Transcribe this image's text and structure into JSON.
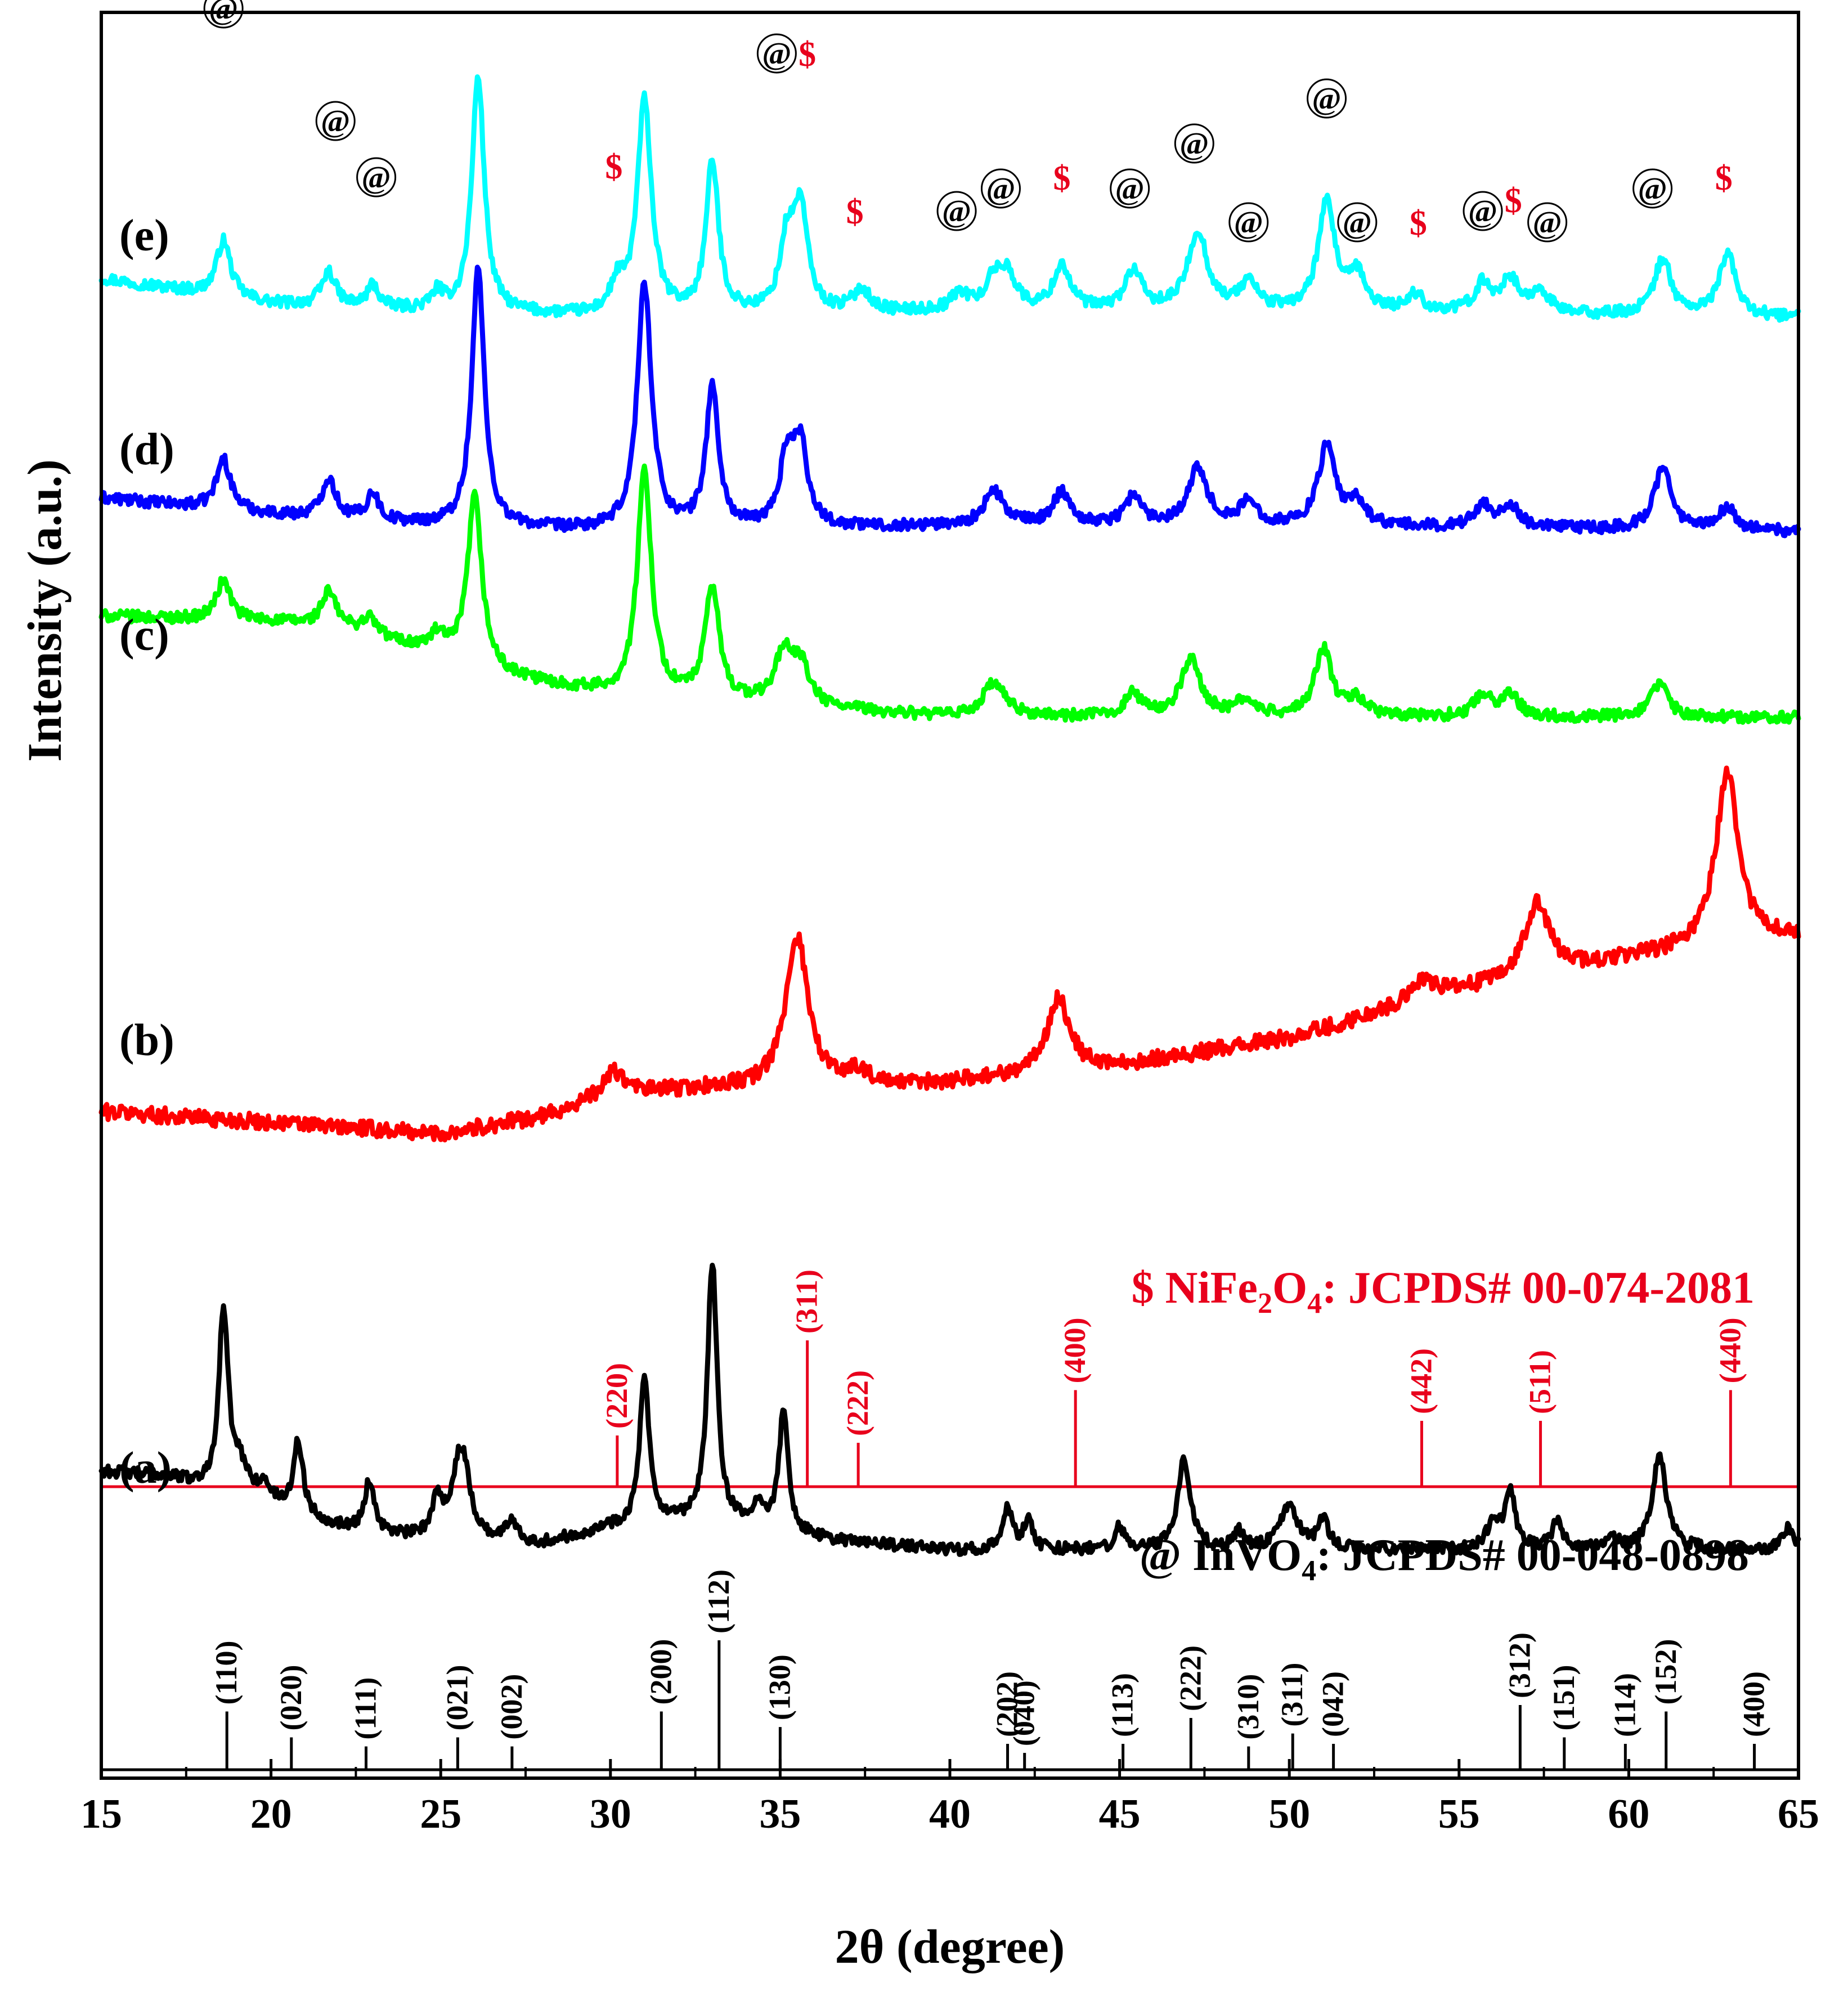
{
  "chart_data": {
    "type": "line",
    "title": "",
    "xlabel": "2θ (degree)",
    "ylabel": "Intensity (a.u.)",
    "xlim": [
      15,
      65
    ],
    "x_ticks": [
      15,
      20,
      25,
      30,
      35,
      40,
      45,
      50,
      55,
      60,
      65
    ],
    "series": [
      {
        "name": "(e)",
        "color": "#00ffff",
        "baseline": 8.35,
        "bg": [
          [
            15,
            0.35
          ],
          [
            20,
            0.12
          ],
          [
            25,
            0.05
          ],
          [
            30,
            0.0
          ],
          [
            40,
            0.05
          ],
          [
            50,
            0.05
          ],
          [
            65,
            0.0
          ]
        ],
        "noise": 0.05,
        "peaks": [
          [
            18.6,
            0.5,
            0.25
          ],
          [
            21.7,
            0.3,
            0.25
          ],
          [
            23.0,
            0.2,
            0.2
          ],
          [
            24.9,
            0.15,
            0.2
          ],
          [
            26.1,
            2.1,
            0.22
          ],
          [
            30.2,
            0.25,
            0.25
          ],
          [
            31.0,
            1.9,
            0.25
          ],
          [
            33.0,
            1.35,
            0.22
          ],
          [
            35.2,
            0.6,
            0.25
          ],
          [
            35.6,
            0.9,
            0.25
          ],
          [
            37.4,
            0.2,
            0.3
          ],
          [
            40.3,
            0.15,
            0.3
          ],
          [
            41.3,
            0.25,
            0.3
          ],
          [
            41.7,
            0.3,
            0.3
          ],
          [
            43.3,
            0.4,
            0.3
          ],
          [
            45.4,
            0.35,
            0.3
          ],
          [
            47.3,
            0.7,
            0.35
          ],
          [
            48.8,
            0.25,
            0.3
          ],
          [
            51.1,
            0.95,
            0.3
          ],
          [
            52.0,
            0.3,
            0.3
          ],
          [
            53.7,
            0.15,
            0.3
          ],
          [
            55.7,
            0.25,
            0.3
          ],
          [
            56.5,
            0.3,
            0.3
          ],
          [
            57.4,
            0.2,
            0.3
          ],
          [
            61.0,
            0.5,
            0.3
          ],
          [
            62.9,
            0.55,
            0.3
          ]
        ],
        "markers": [
          {
            "sym": "@",
            "x": 18.6,
            "y": 11.1
          },
          {
            "sym": "@",
            "x": 21.9,
            "y": 10.1
          },
          {
            "sym": "@",
            "x": 23.1,
            "y": 9.6
          },
          {
            "sym": "@",
            "x": 26.1,
            "y": 12.5
          },
          {
            "sym": "$",
            "x": 30.1,
            "y": 9.7
          },
          {
            "sym": "@",
            "x": 31.0,
            "y": 12.5
          },
          {
            "sym": "@",
            "x": 33.0,
            "y": 11.7
          },
          {
            "sym": "@",
            "x": 34.9,
            "y": 10.7
          },
          {
            "sym": "$",
            "x": 35.8,
            "y": 10.7
          },
          {
            "sym": "$",
            "x": 37.2,
            "y": 9.3
          },
          {
            "sym": "@",
            "x": 40.2,
            "y": 9.3
          },
          {
            "sym": "@",
            "x": 41.5,
            "y": 9.5
          },
          {
            "sym": "$",
            "x": 43.3,
            "y": 9.6
          },
          {
            "sym": "@",
            "x": 45.3,
            "y": 9.5
          },
          {
            "sym": "@",
            "x": 47.2,
            "y": 9.9
          },
          {
            "sym": "@",
            "x": 48.8,
            "y": 9.2
          },
          {
            "sym": "@",
            "x": 51.1,
            "y": 10.3
          },
          {
            "sym": "@",
            "x": 52.0,
            "y": 9.2
          },
          {
            "sym": "$",
            "x": 53.8,
            "y": 9.2
          },
          {
            "sym": "@",
            "x": 55.7,
            "y": 9.3
          },
          {
            "sym": "$",
            "x": 56.6,
            "y": 9.4
          },
          {
            "sym": "@",
            "x": 57.6,
            "y": 9.2
          },
          {
            "sym": "@",
            "x": 60.7,
            "y": 9.5
          },
          {
            "sym": "$",
            "x": 62.8,
            "y": 9.6
          }
        ]
      },
      {
        "name": "(d)",
        "color": "#0000ff",
        "baseline": 6.45,
        "bg": [
          [
            15,
            0.3
          ],
          [
            20,
            0.15
          ],
          [
            25,
            0.05
          ],
          [
            30,
            0.0
          ],
          [
            40,
            0.05
          ],
          [
            50,
            0.05
          ],
          [
            65,
            0.0
          ]
        ],
        "noise": 0.05,
        "peaks": [
          [
            18.6,
            0.45,
            0.25
          ],
          [
            21.7,
            0.35,
            0.25
          ],
          [
            23.0,
            0.25,
            0.2
          ],
          [
            26.1,
            2.3,
            0.22
          ],
          [
            31.0,
            2.2,
            0.25
          ],
          [
            33.0,
            1.25,
            0.22
          ],
          [
            35.2,
            0.6,
            0.25
          ],
          [
            35.6,
            0.7,
            0.25
          ],
          [
            41.3,
            0.3,
            0.35
          ],
          [
            43.3,
            0.3,
            0.3
          ],
          [
            45.4,
            0.25,
            0.3
          ],
          [
            47.3,
            0.5,
            0.35
          ],
          [
            48.8,
            0.2,
            0.3
          ],
          [
            51.1,
            0.7,
            0.3
          ],
          [
            52.0,
            0.2,
            0.3
          ],
          [
            55.7,
            0.2,
            0.3
          ],
          [
            56.5,
            0.2,
            0.3
          ],
          [
            61.0,
            0.55,
            0.3
          ],
          [
            62.9,
            0.2,
            0.3
          ]
        ],
        "markers": []
      },
      {
        "name": "(c)",
        "color": "#00ff00",
        "baseline": 4.8,
        "bg": [
          [
            15,
            0.9
          ],
          [
            20,
            0.85
          ],
          [
            22,
            0.8
          ],
          [
            25,
            0.55
          ],
          [
            27,
            0.35
          ],
          [
            30,
            0.2
          ],
          [
            35,
            0.1
          ],
          [
            40,
            0.0
          ],
          [
            50,
            0.0
          ],
          [
            65,
            0.0
          ]
        ],
        "noise": 0.05,
        "peaks": [
          [
            18.6,
            0.35,
            0.25
          ],
          [
            21.7,
            0.3,
            0.25
          ],
          [
            22.9,
            0.15,
            0.25
          ],
          [
            24.9,
            0.15,
            0.25
          ],
          [
            26.0,
            1.5,
            0.25
          ],
          [
            31.0,
            2.0,
            0.25
          ],
          [
            33.0,
            1.0,
            0.25
          ],
          [
            35.1,
            0.45,
            0.3
          ],
          [
            35.6,
            0.35,
            0.3
          ],
          [
            41.3,
            0.3,
            0.4
          ],
          [
            45.4,
            0.2,
            0.3
          ],
          [
            47.1,
            0.5,
            0.35
          ],
          [
            48.7,
            0.15,
            0.3
          ],
          [
            51.0,
            0.6,
            0.3
          ],
          [
            52.0,
            0.15,
            0.3
          ],
          [
            55.7,
            0.2,
            0.3
          ],
          [
            56.5,
            0.2,
            0.3
          ],
          [
            60.9,
            0.3,
            0.3
          ]
        ],
        "markers": []
      },
      {
        "name": "(b)",
        "color": "#ff0000",
        "baseline": 1.2,
        "bg": [
          [
            15,
            0.1
          ],
          [
            20,
            0.0
          ],
          [
            25,
            -0.1
          ],
          [
            28,
            0.05
          ],
          [
            30,
            0.25
          ],
          [
            33,
            0.3
          ],
          [
            38,
            0.3
          ],
          [
            45,
            0.5
          ],
          [
            50,
            0.75
          ],
          [
            55,
            1.15
          ],
          [
            60,
            1.45
          ],
          [
            65,
            1.65
          ]
        ],
        "noise": 0.07,
        "peaks": [
          [
            30.1,
            0.2,
            0.35
          ],
          [
            35.5,
            1.35,
            0.4
          ],
          [
            37.3,
            0.15,
            0.4
          ],
          [
            43.2,
            0.65,
            0.4
          ],
          [
            53.9,
            0.2,
            0.5
          ],
          [
            57.3,
            0.65,
            0.45
          ],
          [
            62.9,
            1.55,
            0.4
          ]
        ],
        "markers": []
      },
      {
        "name": "(a)",
        "color": "#000000",
        "baseline": -2.6,
        "bg": [
          [
            15,
            0.7
          ],
          [
            17,
            0.65
          ],
          [
            19,
            0.45
          ],
          [
            22,
            0.2
          ],
          [
            25,
            0.05
          ],
          [
            28,
            0.05
          ],
          [
            30,
            0.2
          ],
          [
            33,
            0.25
          ],
          [
            36,
            0.1
          ],
          [
            40,
            0.0
          ],
          [
            50,
            0.0
          ],
          [
            65,
            0.0
          ]
        ],
        "noise": 0.05,
        "peaks": [
          [
            18.6,
            1.6,
            0.17
          ],
          [
            19.1,
            0.25,
            0.3
          ],
          [
            19.8,
            0.15,
            0.3
          ],
          [
            20.8,
            0.65,
            0.17
          ],
          [
            22.9,
            0.45,
            0.17
          ],
          [
            24.9,
            0.35,
            0.2
          ],
          [
            25.6,
            0.85,
            0.3
          ],
          [
            27.1,
            0.2,
            0.2
          ],
          [
            31.0,
            1.3,
            0.17
          ],
          [
            33.0,
            2.3,
            0.17
          ],
          [
            34.4,
            0.2,
            0.2
          ],
          [
            35.1,
            1.05,
            0.17
          ],
          [
            41.7,
            0.35,
            0.17
          ],
          [
            42.3,
            0.25,
            0.17
          ],
          [
            45.0,
            0.2,
            0.17
          ],
          [
            46.9,
            0.8,
            0.22
          ],
          [
            48.5,
            0.15,
            0.2
          ],
          [
            50.0,
            0.4,
            0.3
          ],
          [
            51.0,
            0.25,
            0.2
          ],
          [
            56.0,
            0.25,
            0.2
          ],
          [
            56.5,
            0.55,
            0.17
          ],
          [
            57.9,
            0.25,
            0.2
          ],
          [
            59.5,
            0.1,
            0.2
          ],
          [
            60.9,
            0.85,
            0.25
          ],
          [
            64.7,
            0.2,
            0.2
          ]
        ],
        "markers": []
      }
    ],
    "references": [
      {
        "label_prefix": "$ NiFe",
        "sub1": "2",
        "mid": "O",
        "sub2": "4",
        "label_suffix": ": JCPDS# 00-074-2081",
        "color": "#e8001c",
        "lines": [
          {
            "x": 30.2,
            "h": 0.35,
            "hkl": "(220)"
          },
          {
            "x": 35.8,
            "h": 1.0,
            "hkl": "(311)"
          },
          {
            "x": 37.3,
            "h": 0.3,
            "hkl": "(222)"
          },
          {
            "x": 43.7,
            "h": 0.66,
            "hkl": "(400)"
          },
          {
            "x": 53.9,
            "h": 0.45,
            "hkl": "(442)"
          },
          {
            "x": 57.4,
            "h": 0.45,
            "hkl": "(511)"
          },
          {
            "x": 63.0,
            "h": 0.66,
            "hkl": "(440)"
          }
        ]
      },
      {
        "label_prefix": "@ InVO",
        "sub1": "4",
        "mid": "",
        "sub2": "",
        "label_suffix": ": JCPDS# 00-048-0898",
        "color": "#000000",
        "lines": [
          {
            "x": 18.7,
            "h": 0.45,
            "hkl": "(110)"
          },
          {
            "x": 20.6,
            "h": 0.25,
            "hkl": "(020)"
          },
          {
            "x": 22.8,
            "h": 0.18,
            "hkl": "(111)"
          },
          {
            "x": 25.5,
            "h": 0.25,
            "hkl": "(021)"
          },
          {
            "x": 27.1,
            "h": 0.18,
            "hkl": "(002)"
          },
          {
            "x": 31.5,
            "h": 0.45,
            "hkl": "(200)"
          },
          {
            "x": 33.2,
            "h": 1.0,
            "hkl": "(112)"
          },
          {
            "x": 35.0,
            "h": 0.33,
            "hkl": "(130)"
          },
          {
            "x": 41.7,
            "h": 0.2,
            "hkl": "(202)"
          },
          {
            "x": 42.2,
            "h": 0.13,
            "hkl": "(040)"
          },
          {
            "x": 45.1,
            "h": 0.2,
            "hkl": "(113)"
          },
          {
            "x": 47.1,
            "h": 0.4,
            "hkl": "(222)"
          },
          {
            "x": 48.8,
            "h": 0.18,
            "hkl": "(310)"
          },
          {
            "x": 50.1,
            "h": 0.28,
            "hkl": "(311)"
          },
          {
            "x": 51.3,
            "h": 0.2,
            "hkl": "(042)"
          },
          {
            "x": 56.8,
            "h": 0.5,
            "hkl": "(312)"
          },
          {
            "x": 58.1,
            "h": 0.25,
            "hkl": "(151)"
          },
          {
            "x": 59.9,
            "h": 0.2,
            "hkl": "(114)"
          },
          {
            "x": 61.1,
            "h": 0.45,
            "hkl": "(152)"
          },
          {
            "x": 63.7,
            "h": 0.2,
            "hkl": "(400)"
          }
        ]
      }
    ]
  }
}
